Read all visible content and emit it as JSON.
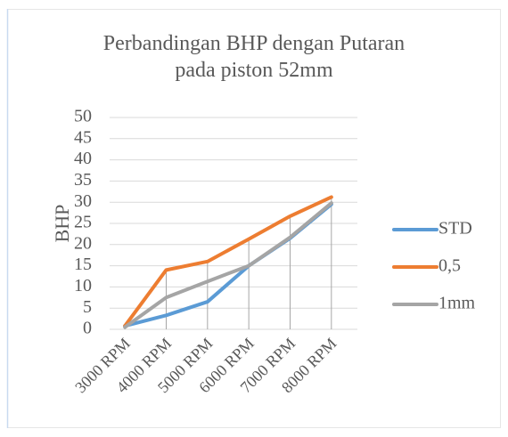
{
  "chart_data": {
    "type": "line",
    "title": "Perbandingan BHP dengan Putaran pada piston 52mm",
    "y_label": "BHP",
    "categories": [
      "3000 RPM",
      "4000 RPM",
      "5000 RPM",
      "6000 RPM",
      "7000 RPM",
      "8000 RPM"
    ],
    "series": [
      {
        "name": "STD",
        "color": "#5b9bd5",
        "values": [
          0.8,
          3.3,
          6.5,
          15,
          21.5,
          29.5
        ]
      },
      {
        "name": "0,5",
        "color": "#ed7d31",
        "values": [
          0.8,
          14,
          16,
          21.3,
          26.7,
          31.2
        ]
      },
      {
        "name": "1mm",
        "color": "#a5a5a5",
        "values": [
          0.5,
          7.5,
          11.3,
          15,
          21.7,
          29.8
        ]
      }
    ],
    "ylim": [
      0,
      50
    ],
    "yticks": [
      0,
      5,
      10,
      15,
      20,
      25,
      30,
      35,
      40,
      45,
      50
    ],
    "grid": true,
    "drop_lines": true,
    "legend": "right"
  }
}
